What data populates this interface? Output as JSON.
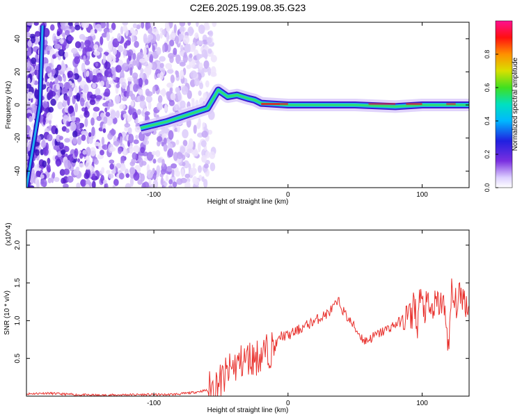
{
  "figure_title": "C2E6.2025.199.08.35.G23",
  "colors": {
    "snr_line": "#e8302c",
    "spectro_low": "#ece0fb",
    "spectro_mid": "#6a2fd6",
    "spectro_high": "#d0102a"
  },
  "chart_data": [
    {
      "type": "heatmap",
      "title": "",
      "xlabel": "Height of straight line (km)",
      "ylabel": "Frequency (Hz)",
      "xlim": [
        -195,
        135
      ],
      "ylim": [
        -50,
        50
      ],
      "xticks": [
        -100,
        0,
        100
      ],
      "yticks": [
        -40,
        -20,
        0,
        20,
        40
      ],
      "colorbar": {
        "label": "Normalized spectral amplitude",
        "range": [
          0,
          1
        ],
        "ticks": [
          "0.0",
          "0.2",
          "0.4",
          "0.6",
          "0.8"
        ],
        "colormap": "rainbow (white-violet-blue-cyan-green-yellow-red-magenta)"
      },
      "ridge": {
        "description": "spectral ridge near 0 Hz",
        "x": [
          -110,
          -90,
          -75,
          -60,
          -52,
          -45,
          -38,
          -30,
          -25,
          -20,
          0,
          50,
          80,
          100,
          120,
          135
        ],
        "y": [
          -14,
          -10,
          -6,
          -2,
          9,
          5,
          6,
          4,
          3,
          1,
          0,
          0,
          -1,
          0,
          0,
          0
        ]
      },
      "left_streak": {
        "description": "steep strong streak at left edge",
        "x": [
          -195,
          -185,
          -183
        ],
        "y": [
          -50,
          0,
          48
        ]
      }
    },
    {
      "type": "line",
      "title": "",
      "xlabel": "Height of straight line (km)",
      "ylabel": "SNR (10 * v/v)",
      "y_multiplier": "(x10^4)",
      "xlim": [
        -195,
        135
      ],
      "ylim": [
        0,
        2.2
      ],
      "xticks": [
        -100,
        0,
        100
      ],
      "yticks": [
        0.5,
        1.0,
        1.5,
        2.0
      ],
      "series": [
        {
          "x": [
            -195,
            -180,
            -160,
            -140,
            -120,
            -100,
            -90,
            -80,
            -70,
            -60,
            -50,
            -45,
            -40,
            -35,
            -30,
            -25,
            -20,
            -15,
            -10,
            -5,
            0,
            5,
            10,
            15,
            20,
            25,
            30,
            35,
            38,
            42,
            46,
            50,
            54,
            57,
            60,
            65,
            70,
            75,
            80,
            85,
            88,
            90,
            92,
            94,
            96,
            98,
            100,
            102,
            104,
            106,
            110,
            115,
            118,
            120,
            122,
            124,
            126,
            128,
            130,
            132,
            135
          ],
          "y": [
            0.03,
            0.04,
            0.02,
            0.01,
            0.02,
            0.02,
            0.02,
            0.03,
            0.05,
            0.08,
            0.2,
            0.3,
            0.4,
            0.45,
            0.5,
            0.5,
            0.55,
            0.6,
            0.65,
            0.8,
            0.8,
            0.85,
            0.9,
            0.95,
            1.0,
            1.05,
            1.1,
            1.2,
            1.25,
            1.1,
            1.0,
            0.9,
            0.8,
            0.73,
            0.75,
            0.8,
            0.85,
            0.9,
            0.95,
            1.0,
            1.05,
            1.1,
            1.0,
            1.35,
            0.85,
            1.3,
            1.2,
            1.15,
            1.2,
            1.1,
            1.2,
            1.25,
            1.0,
            0.6,
            1.4,
            1.2,
            1.25,
            1.3,
            1.35,
            1.25,
            1.2
          ]
        }
      ]
    }
  ]
}
